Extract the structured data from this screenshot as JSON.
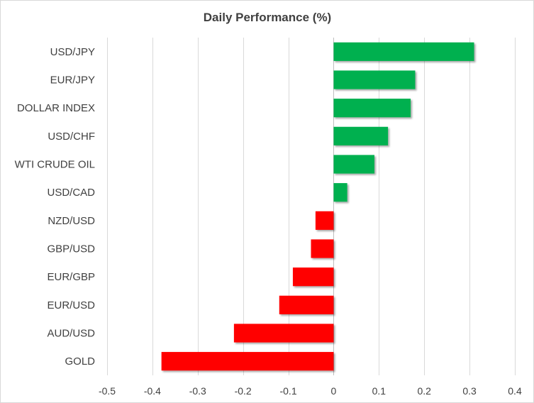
{
  "chart_data": {
    "type": "bar",
    "orientation": "horizontal",
    "title": "Daily Performance  (%)",
    "xlabel": "",
    "ylabel": "",
    "xlim": [
      -0.5,
      0.4
    ],
    "ticks": [
      -0.5,
      -0.4,
      -0.3,
      -0.2,
      -0.1,
      0,
      0.1,
      0.2,
      0.3,
      0.4
    ],
    "tick_labels": [
      "-0.5",
      "-0.4",
      "-0.3",
      "-0.2",
      "-0.1",
      "0",
      "0.1",
      "0.2",
      "0.3",
      "0.4"
    ],
    "grid": "vertical",
    "legend": "none",
    "categories": [
      "USD/JPY",
      "EUR/JPY",
      "DOLLAR INDEX",
      "USD/CHF",
      "WTI CRUDE OIL",
      "USD/CAD",
      "NZD/USD",
      "GBP/USD",
      "EUR/GBP",
      "EUR/USD",
      "AUD/USD",
      "GOLD"
    ],
    "values": [
      0.31,
      0.18,
      0.17,
      0.12,
      0.09,
      0.03,
      -0.04,
      -0.05,
      -0.09,
      -0.12,
      -0.22,
      -0.38
    ],
    "colors": {
      "positive": "#00b050",
      "negative": "#ff0000",
      "gridline": "#d9d9d9",
      "axis_text": "#404040"
    }
  }
}
